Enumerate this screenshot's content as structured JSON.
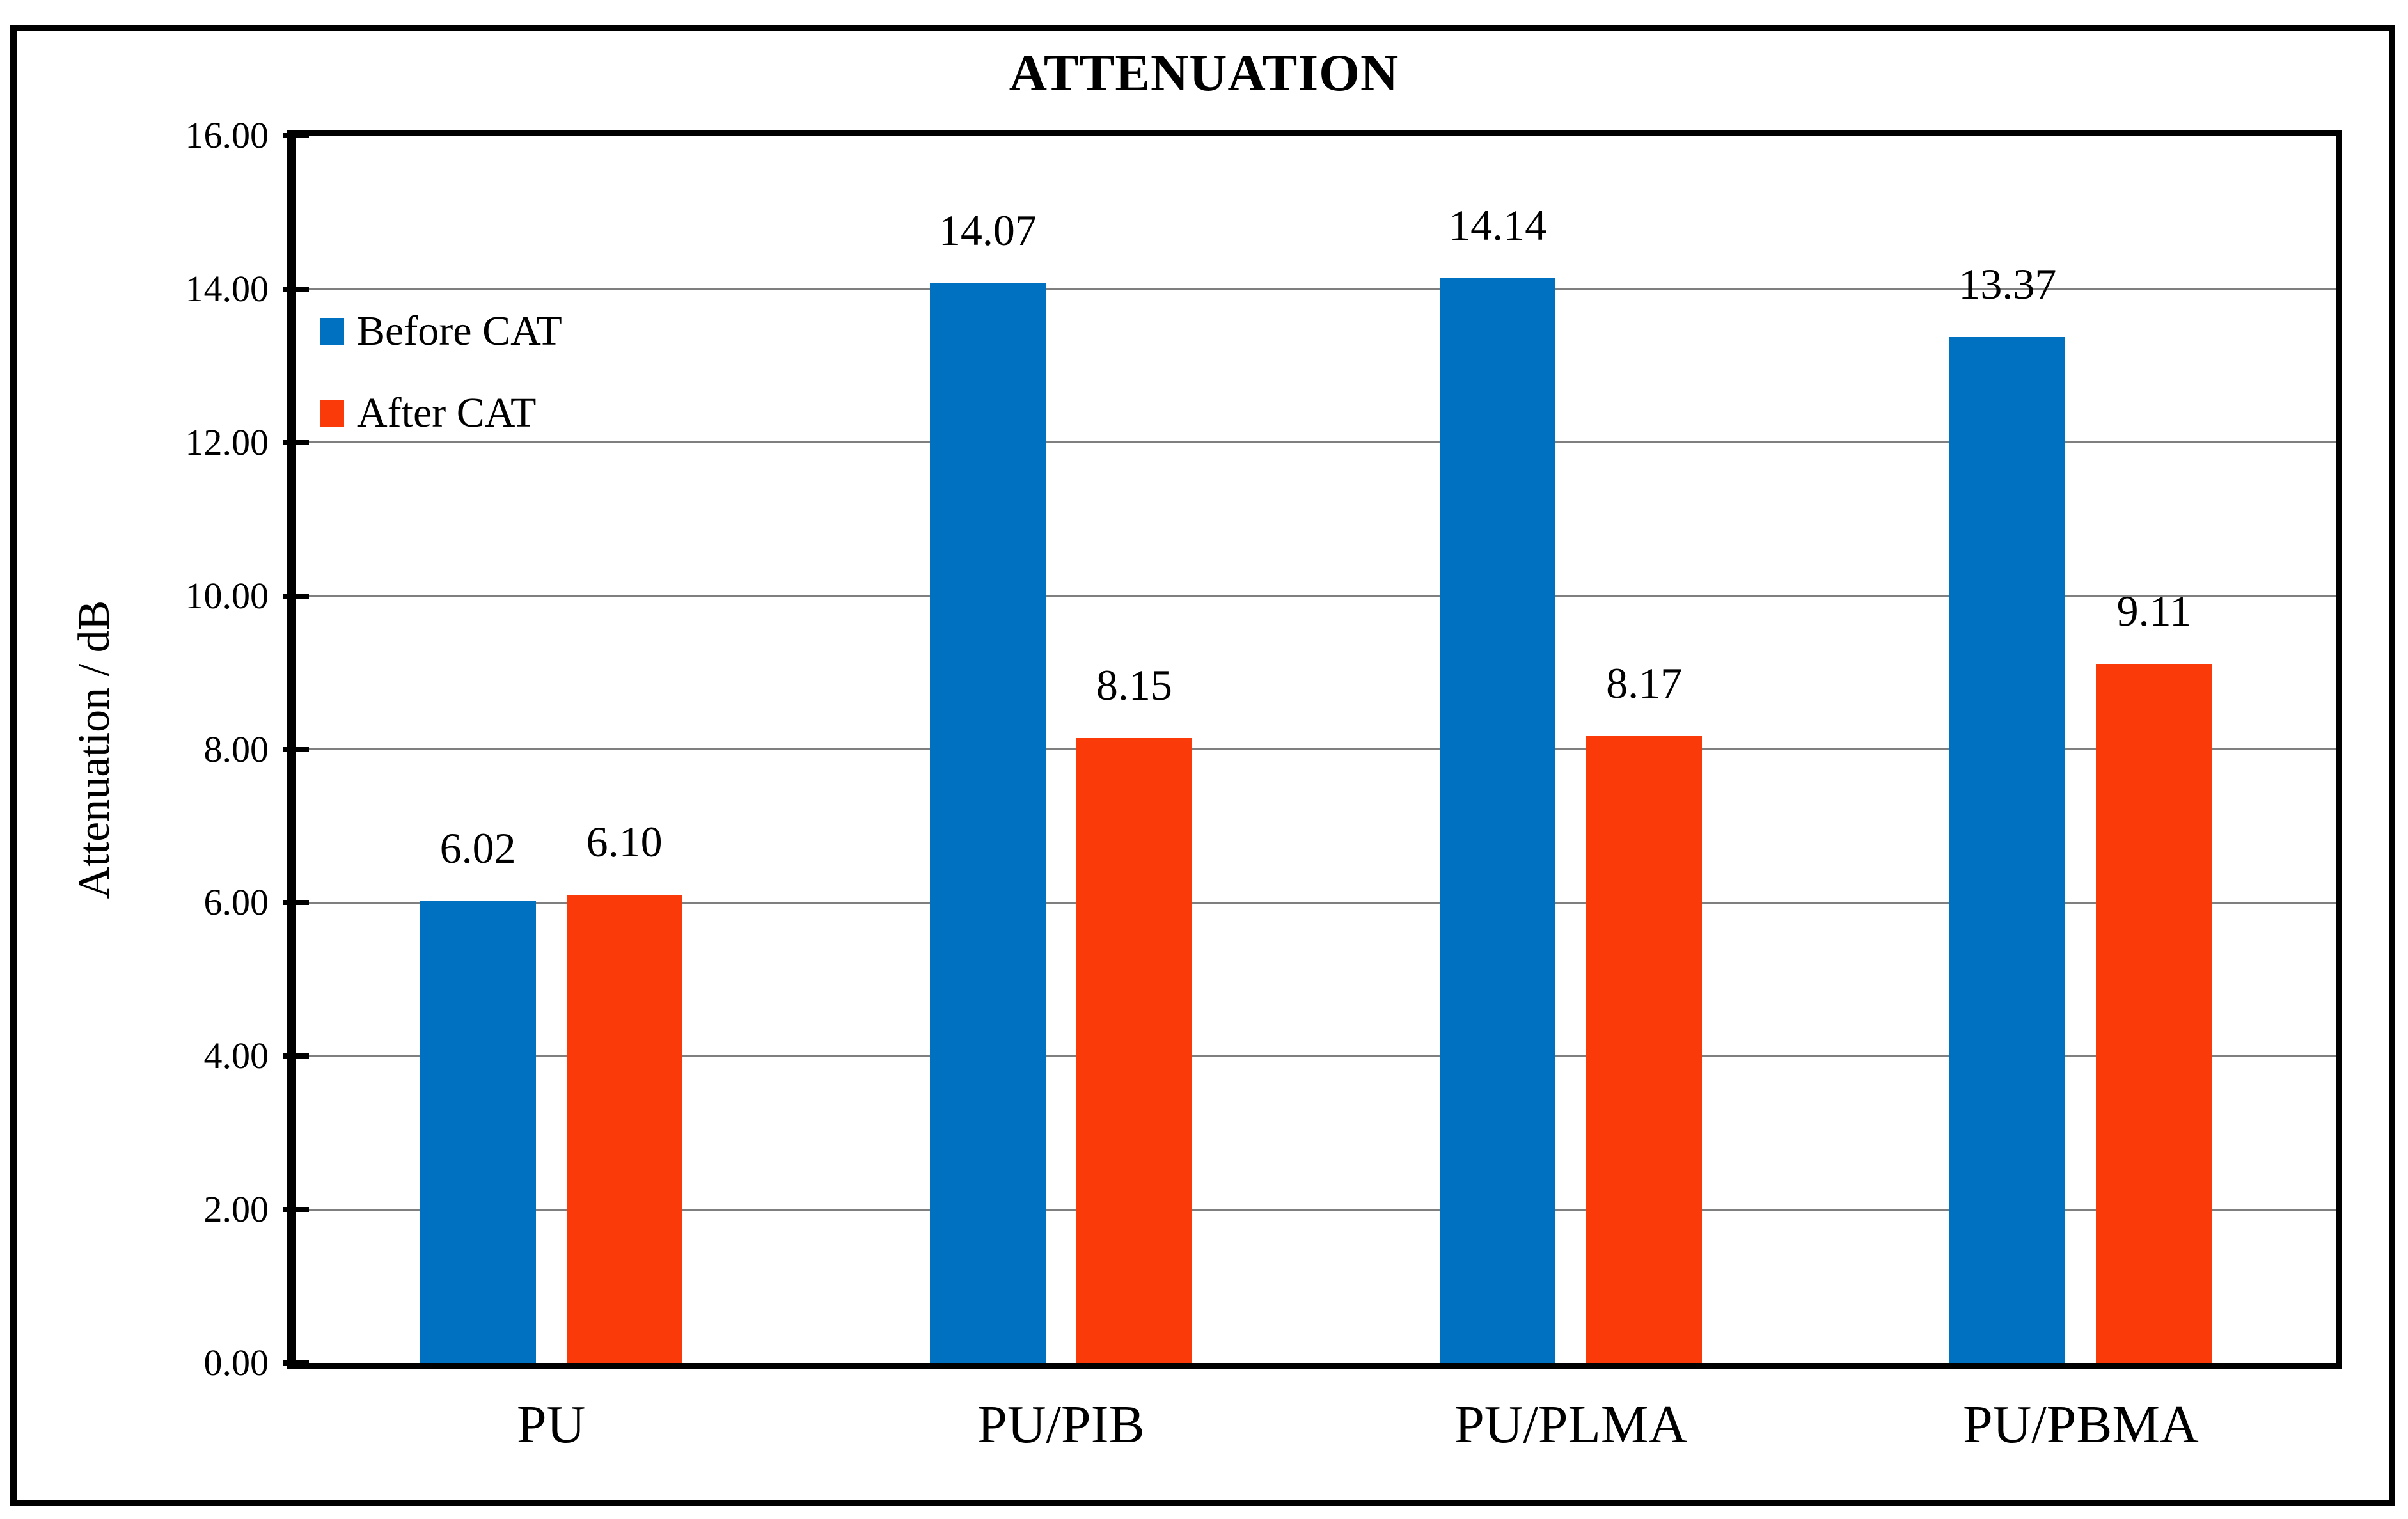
{
  "chart_data": {
    "type": "bar",
    "title": "ATTENUATION",
    "ylabel": "Attenuation / dB",
    "xlabel": "",
    "categories": [
      "PU",
      "PU/PIB",
      "PU/PLMA",
      "PU/PBMA"
    ],
    "series": [
      {
        "name": "Before CAT",
        "color": "#0070C0",
        "values": [
          6.02,
          14.07,
          14.14,
          13.37
        ],
        "labels": [
          "6.02",
          "14.07",
          "14.14",
          "13.37"
        ]
      },
      {
        "name": "After CAT",
        "color": "#FB3A09",
        "values": [
          6.1,
          8.15,
          8.17,
          9.11
        ],
        "labels": [
          "6.10",
          "8.15",
          "8.17",
          "9.11"
        ]
      }
    ],
    "ylim": [
      0,
      16
    ],
    "ytick_step": 2,
    "ytick_labels": [
      "0.00",
      "2.00",
      "4.00",
      "6.00",
      "8.00",
      "10.00",
      "12.00",
      "14.00",
      "16.00"
    ],
    "grid": "horizontal",
    "legend_position": "inside-top-left",
    "colors": {
      "axis": "#000000",
      "gridline": "#7F7F7F",
      "text": "#000000",
      "background": "#FFFFFF"
    }
  }
}
